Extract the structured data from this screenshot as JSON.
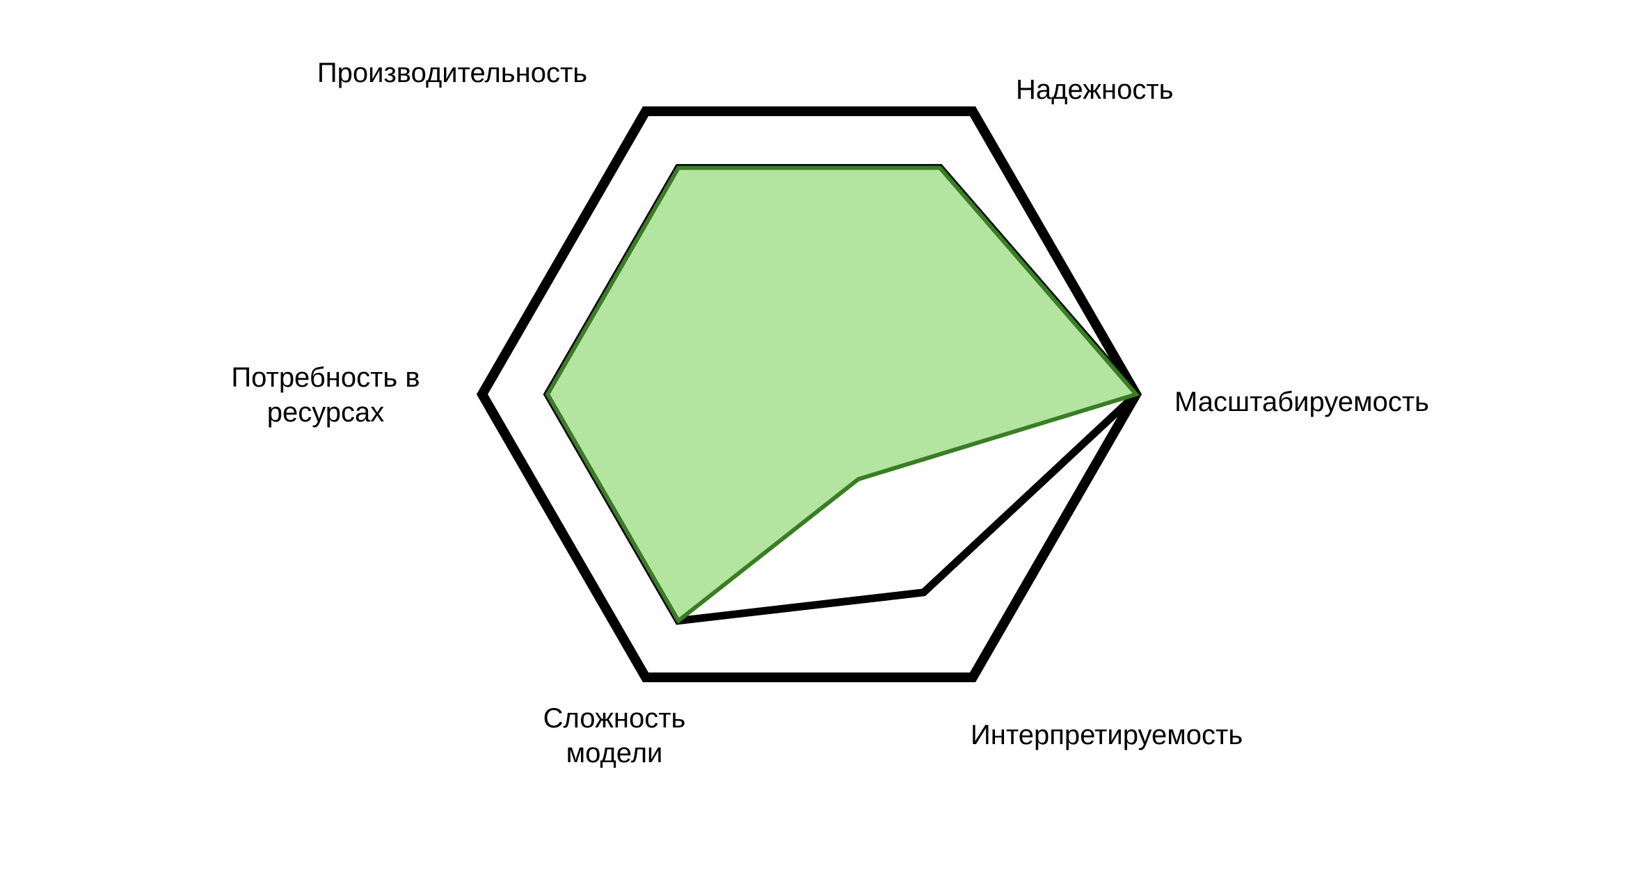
{
  "chart_data": {
    "type": "radar",
    "axes": [
      {
        "key": "performance",
        "label_lines": [
          "Производительность"
        ]
      },
      {
        "key": "reliability",
        "label_lines": [
          "Надежность"
        ]
      },
      {
        "key": "scalability",
        "label_lines": [
          "Масштабируемость"
        ]
      },
      {
        "key": "interpretability",
        "label_lines": [
          "Интерпретируемость"
        ]
      },
      {
        "key": "complexity",
        "label_lines": [
          "Сложность",
          "модели"
        ]
      },
      {
        "key": "resources",
        "label_lines": [
          "Потребность в",
          "ресурсах"
        ]
      }
    ],
    "scale": {
      "min": 0,
      "max": 1
    },
    "reference_levels": [
      1.0,
      0.8
    ],
    "series": [
      {
        "values": [
          0.8,
          0.8,
          1.0,
          0.3,
          0.8,
          0.8
        ],
        "fill_color": "#b3e5a1",
        "line_color": "#3a7d25"
      },
      {
        "values": [
          0.8,
          0.8,
          1.0,
          0.7,
          0.8,
          0.8
        ],
        "fill_color": "none",
        "line_color": "#000000"
      }
    ],
    "grid_color": "#000000",
    "grid": true,
    "legend": false
  }
}
